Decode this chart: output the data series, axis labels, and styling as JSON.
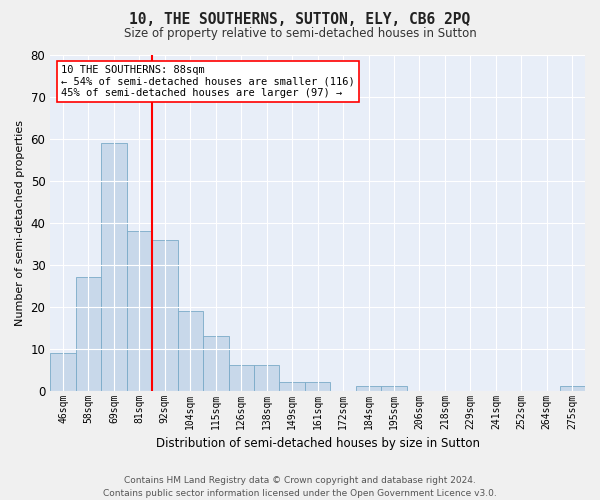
{
  "title": "10, THE SOUTHERNS, SUTTON, ELY, CB6 2PQ",
  "subtitle": "Size of property relative to semi-detached houses in Sutton",
  "xlabel": "Distribution of semi-detached houses by size in Sutton",
  "ylabel": "Number of semi-detached properties",
  "bar_color": "#c8d8ea",
  "bar_edge_color": "#7aaac8",
  "background_color": "#e8eef8",
  "grid_color": "#ffffff",
  "categories": [
    "46sqm",
    "58sqm",
    "69sqm",
    "81sqm",
    "92sqm",
    "104sqm",
    "115sqm",
    "126sqm",
    "138sqm",
    "149sqm",
    "161sqm",
    "172sqm",
    "184sqm",
    "195sqm",
    "206sqm",
    "218sqm",
    "229sqm",
    "241sqm",
    "252sqm",
    "264sqm",
    "275sqm"
  ],
  "values": [
    9,
    27,
    59,
    38,
    36,
    19,
    13,
    6,
    6,
    2,
    2,
    0,
    1,
    1,
    0,
    0,
    0,
    0,
    0,
    0,
    1
  ],
  "red_line_x": 3.5,
  "annotation_text": "10 THE SOUTHERNS: 88sqm\n← 54% of semi-detached houses are smaller (116)\n45% of semi-detached houses are larger (97) →",
  "footer": "Contains HM Land Registry data © Crown copyright and database right 2024.\nContains public sector information licensed under the Open Government Licence v3.0.",
  "ylim": [
    0,
    80
  ],
  "yticks": [
    0,
    10,
    20,
    30,
    40,
    50,
    60,
    70,
    80
  ],
  "fig_bg": "#f0f0f0"
}
